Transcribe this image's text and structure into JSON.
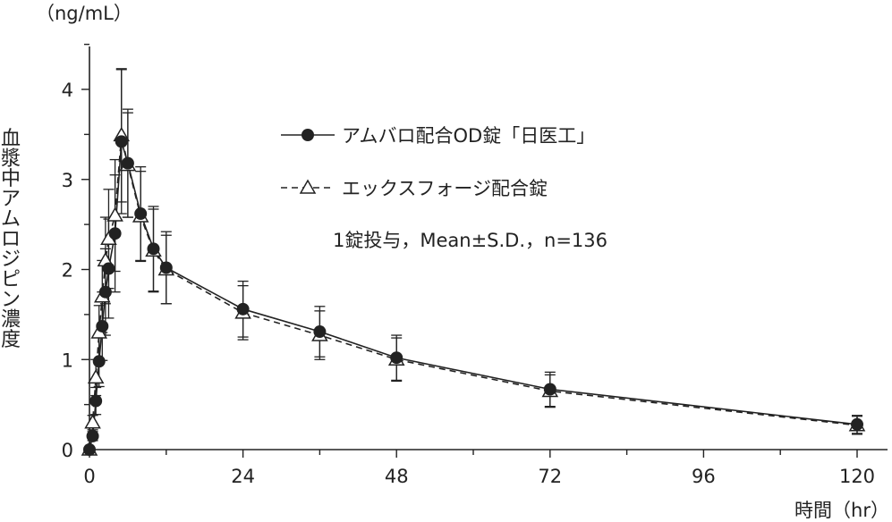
{
  "chart_data": {
    "type": "line",
    "title": "",
    "y_unit": "（ng/mL）",
    "ylabel": "血漿中アムロジピン濃度",
    "xlabel": "時間（hr）",
    "xlim": [
      0,
      124
    ],
    "ylim": [
      0,
      4.5
    ],
    "x_major_ticks": [
      0,
      24,
      48,
      72,
      96,
      120
    ],
    "x_minor_ticks": [
      12,
      36,
      60,
      84,
      108
    ],
    "y_ticks": [
      0,
      1,
      2,
      3,
      4
    ],
    "grid": false,
    "legend_position": "upper-right inside plot",
    "annotation": "1錠投与，Mean±S.D.，n=136",
    "series": [
      {
        "name": "アムバロ配合OD錠「日医工」",
        "marker": "filled-circle",
        "line_style": "solid",
        "color": "#222222",
        "x": [
          0,
          0.5,
          1,
          1.5,
          2,
          2.5,
          3,
          4,
          5,
          6,
          8,
          10,
          12,
          24,
          36,
          48,
          72,
          120
        ],
        "y": [
          0,
          0.15,
          0.54,
          0.98,
          1.37,
          1.75,
          2.01,
          2.4,
          3.42,
          3.18,
          2.62,
          2.23,
          2.02,
          1.56,
          1.31,
          1.02,
          0.67,
          0.28
        ],
        "sd": [
          0,
          0.05,
          0.15,
          0.28,
          0.38,
          0.48,
          0.55,
          0.65,
          0.8,
          0.6,
          0.52,
          0.47,
          0.4,
          0.31,
          0.28,
          0.25,
          0.19,
          0.1
        ]
      },
      {
        "name": "エックスフォージ配合錠",
        "marker": "open-triangle",
        "line_style": "dashed",
        "color": "#222222",
        "x": [
          0,
          0.5,
          1,
          1.5,
          2,
          2.5,
          3,
          4,
          5,
          6,
          8,
          10,
          12,
          24,
          36,
          48,
          72,
          120
        ],
        "y": [
          0,
          0.3,
          0.8,
          1.3,
          1.7,
          2.1,
          2.34,
          2.6,
          3.49,
          3.16,
          2.59,
          2.21,
          2.0,
          1.52,
          1.27,
          1.0,
          0.65,
          0.27
        ],
        "sd": [
          0,
          0.08,
          0.2,
          0.3,
          0.4,
          0.48,
          0.55,
          0.62,
          0.74,
          0.58,
          0.5,
          0.46,
          0.38,
          0.3,
          0.27,
          0.24,
          0.18,
          0.1
        ]
      }
    ]
  }
}
